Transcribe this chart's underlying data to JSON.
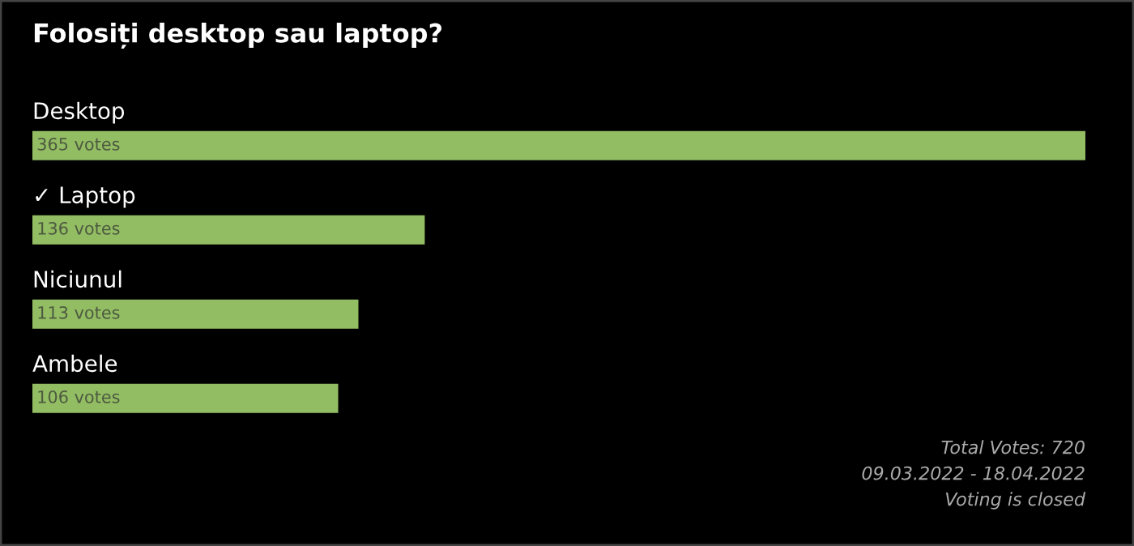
{
  "chart_data": {
    "type": "bar",
    "orientation": "horizontal",
    "title": "Folosiți desktop sau laptop?",
    "categories": [
      "Desktop",
      "✓ Laptop",
      "Niciunul",
      "Ambele"
    ],
    "values": [
      365,
      136,
      113,
      106
    ],
    "value_labels": [
      "365 votes",
      "136 votes",
      "113 votes",
      "106 votes"
    ],
    "color": "#93bd63",
    "xlim": [
      0,
      365
    ],
    "annotations": [
      "Total Votes: 720",
      "09.03.2022 - 18.04.2022",
      "Voting is closed"
    ]
  }
}
